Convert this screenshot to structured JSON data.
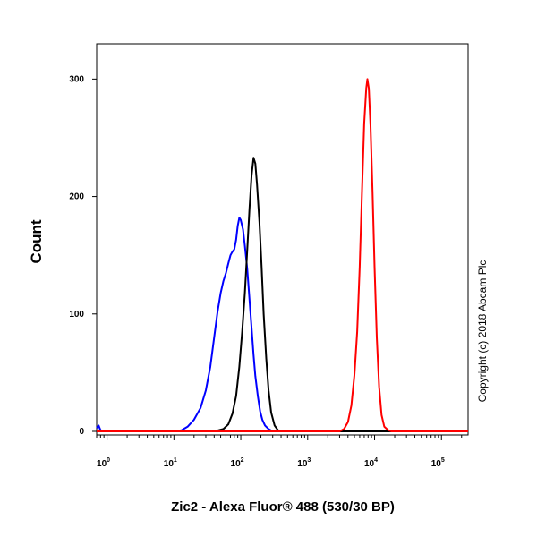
{
  "chart_data": {
    "type": "line",
    "xlabel": "Zic2 - Alexa Fluor® 488 (530/30 BP)",
    "ylabel": "Count",
    "x_scale": "log",
    "xlim": [
      0.7,
      250000
    ],
    "ylim": [
      0,
      330
    ],
    "x_ticks": [
      {
        "base": "10",
        "exp": "0",
        "value": 1
      },
      {
        "base": "10",
        "exp": "1",
        "value": 10
      },
      {
        "base": "10",
        "exp": "2",
        "value": 100
      },
      {
        "base": "10",
        "exp": "3",
        "value": 1000
      },
      {
        "base": "10",
        "exp": "4",
        "value": 10000
      },
      {
        "base": "10",
        "exp": "5",
        "value": 100000
      }
    ],
    "y_ticks": [
      {
        "label": "0",
        "value": 0
      },
      {
        "label": "100",
        "value": 100
      },
      {
        "label": "200",
        "value": 200
      },
      {
        "label": "300",
        "value": 300
      }
    ],
    "annotation": "Copyright (c) 2018 Abcam Plc",
    "series": [
      {
        "color": "#0000ff",
        "points": [
          [
            0.7,
            3
          ],
          [
            0.75,
            5
          ],
          [
            0.8,
            1
          ],
          [
            1,
            0
          ],
          [
            10,
            0
          ],
          [
            13,
            1
          ],
          [
            16,
            4
          ],
          [
            20,
            10
          ],
          [
            25,
            20
          ],
          [
            30,
            35
          ],
          [
            35,
            55
          ],
          [
            40,
            80
          ],
          [
            45,
            102
          ],
          [
            50,
            118
          ],
          [
            55,
            128
          ],
          [
            60,
            135
          ],
          [
            65,
            143
          ],
          [
            70,
            150
          ],
          [
            75,
            153
          ],
          [
            80,
            155
          ],
          [
            85,
            163
          ],
          [
            90,
            175
          ],
          [
            95,
            182
          ],
          [
            100,
            180
          ],
          [
            108,
            172
          ],
          [
            115,
            158
          ],
          [
            125,
            138
          ],
          [
            135,
            112
          ],
          [
            145,
            88
          ],
          [
            155,
            65
          ],
          [
            165,
            47
          ],
          [
            180,
            30
          ],
          [
            195,
            17
          ],
          [
            210,
            10
          ],
          [
            230,
            5
          ],
          [
            260,
            2
          ],
          [
            300,
            0
          ],
          [
            250000,
            0
          ]
        ]
      },
      {
        "color": "#000000",
        "points": [
          [
            0.7,
            0
          ],
          [
            40,
            0
          ],
          [
            55,
            2
          ],
          [
            65,
            6
          ],
          [
            75,
            15
          ],
          [
            85,
            30
          ],
          [
            95,
            55
          ],
          [
            105,
            85
          ],
          [
            115,
            118
          ],
          [
            125,
            155
          ],
          [
            135,
            190
          ],
          [
            145,
            218
          ],
          [
            155,
            233
          ],
          [
            165,
            228
          ],
          [
            175,
            210
          ],
          [
            190,
            178
          ],
          [
            205,
            140
          ],
          [
            220,
            100
          ],
          [
            240,
            62
          ],
          [
            260,
            35
          ],
          [
            285,
            16
          ],
          [
            320,
            5
          ],
          [
            360,
            1
          ],
          [
            400,
            0
          ],
          [
            250000,
            0
          ]
        ]
      },
      {
        "color": "#ff0000",
        "points": [
          [
            0.7,
            0
          ],
          [
            3000,
            0
          ],
          [
            3500,
            2
          ],
          [
            4000,
            8
          ],
          [
            4500,
            22
          ],
          [
            5000,
            48
          ],
          [
            5500,
            85
          ],
          [
            6000,
            140
          ],
          [
            6500,
            205
          ],
          [
            7000,
            262
          ],
          [
            7500,
            292
          ],
          [
            7800,
            300
          ],
          [
            8200,
            292
          ],
          [
            8700,
            260
          ],
          [
            9300,
            205
          ],
          [
            10000,
            140
          ],
          [
            10800,
            80
          ],
          [
            11700,
            38
          ],
          [
            12700,
            14
          ],
          [
            14000,
            4
          ],
          [
            16000,
            1
          ],
          [
            18000,
            0
          ],
          [
            250000,
            0
          ]
        ]
      }
    ]
  }
}
